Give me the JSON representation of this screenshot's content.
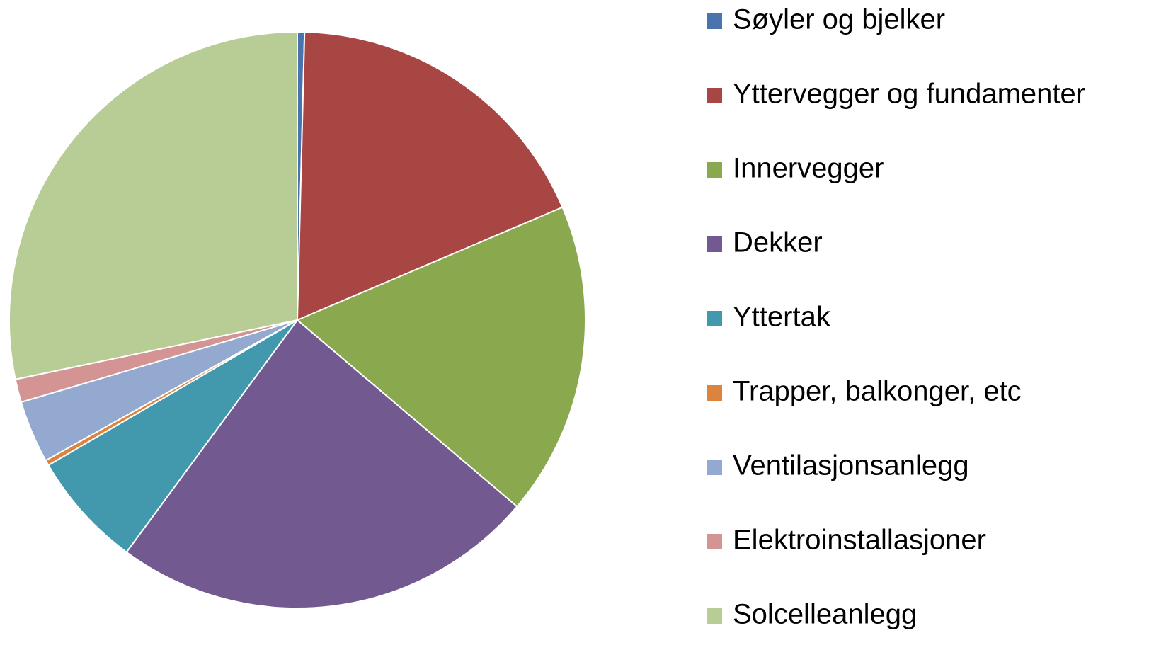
{
  "chart_data": {
    "type": "pie",
    "categories": [
      "Søyler og bjelker",
      "Yttervegger og fundamenter",
      "Innervegger",
      "Dekker",
      "Yttertak",
      "Trapper, balkonger, etc",
      "Ventilasjonsanlegg",
      "Elektroinstallasjoner",
      "Solcelleanlegg"
    ],
    "values": [
      0.4,
      18.2,
      17.6,
      23.9,
      6.5,
      0.3,
      3.5,
      1.3,
      28.3
    ],
    "colors": [
      "#4a74ad",
      "#a84644",
      "#8aa84e",
      "#72598f",
      "#4299ae",
      "#db843d",
      "#93a9d0",
      "#d49494",
      "#b8cd96"
    ],
    "legend": "right"
  }
}
